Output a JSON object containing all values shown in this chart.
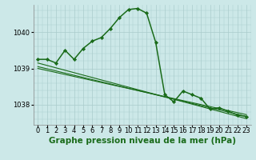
{
  "background_color": "#cce8e8",
  "plot_bg_color": "#cce8e8",
  "grid_color": "#aacccc",
  "line_color": "#1a6b1a",
  "title": "Graphe pression niveau de la mer (hPa)",
  "title_fontsize": 7.5,
  "tick_fontsize": 6.0,
  "xlim": [
    -0.5,
    23.5
  ],
  "ylim": [
    1037.45,
    1040.75
  ],
  "yticks": [
    1038,
    1039,
    1040
  ],
  "xticks": [
    0,
    1,
    2,
    3,
    4,
    5,
    6,
    7,
    8,
    9,
    10,
    11,
    12,
    13,
    14,
    15,
    16,
    17,
    18,
    19,
    20,
    21,
    22,
    23
  ],
  "main_series": {
    "x": [
      0,
      1,
      2,
      3,
      4,
      5,
      6,
      7,
      8,
      9,
      10,
      11,
      12,
      13,
      14,
      15,
      16,
      17,
      18,
      19,
      20,
      21,
      22,
      23
    ],
    "y": [
      1039.25,
      1039.25,
      1039.15,
      1039.5,
      1039.25,
      1039.55,
      1039.75,
      1039.85,
      1040.1,
      1040.4,
      1040.62,
      1040.65,
      1040.52,
      1039.72,
      1038.28,
      1038.08,
      1038.38,
      1038.28,
      1038.18,
      1037.88,
      1037.92,
      1037.82,
      1037.72,
      1037.68
    ],
    "color": "#1a6b1a",
    "lw": 1.1,
    "marker": "D",
    "ms": 2.2
  },
  "trend_lines": [
    {
      "x": [
        0,
        23
      ],
      "y": [
        1039.15,
        1037.62
      ]
    },
    {
      "x": [
        0,
        23
      ],
      "y": [
        1039.05,
        1037.68
      ]
    },
    {
      "x": [
        0,
        23
      ],
      "y": [
        1039.0,
        1037.73
      ]
    }
  ],
  "trend_lw": 0.8,
  "trend_color": "#1a6b1a"
}
